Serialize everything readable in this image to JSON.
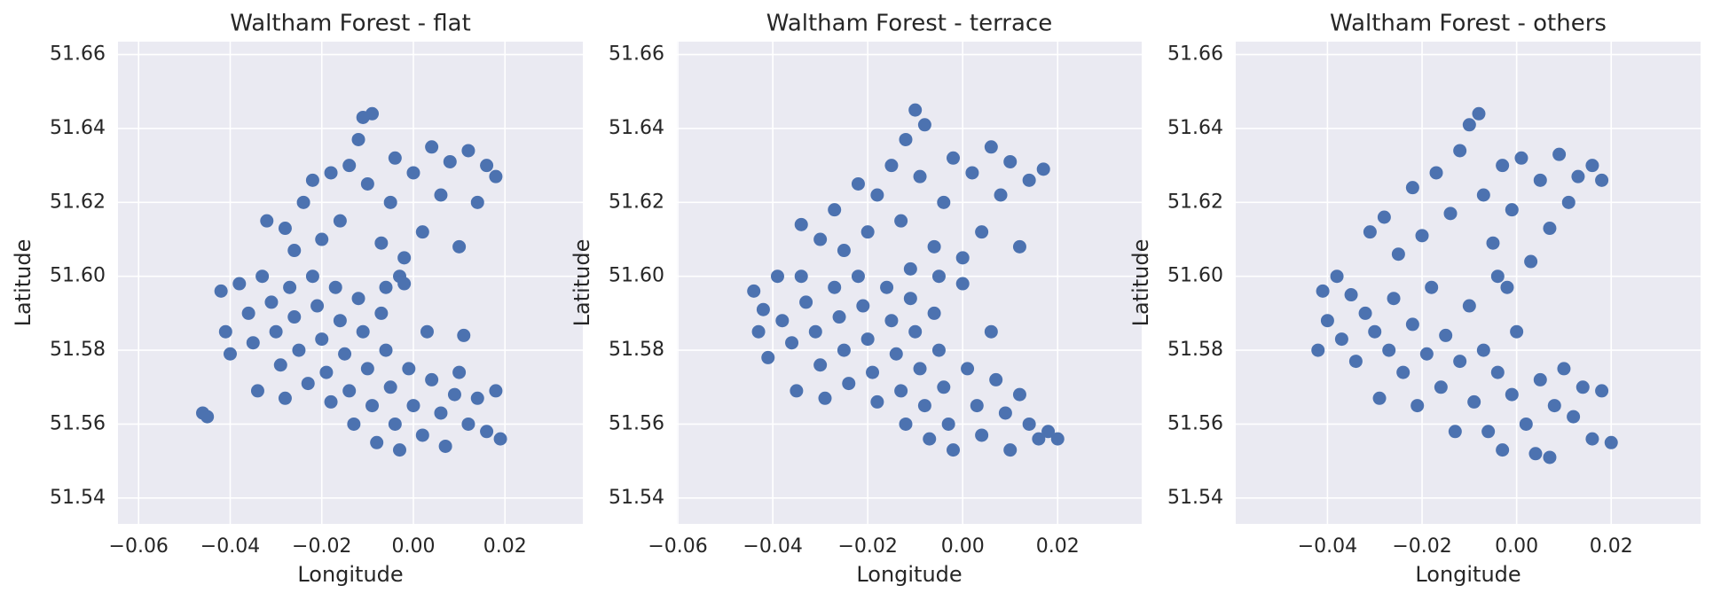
{
  "chart_data": [
    {
      "type": "scatter",
      "title": "Waltham Forest - flat",
      "xlabel": "Longitude",
      "ylabel": "Latitude",
      "color": "#4c72b0",
      "grid": true,
      "xlim": [
        -0.0645,
        0.037
      ],
      "ylim": [
        51.533,
        51.6635
      ],
      "xticks": [
        {
          "value": -0.06,
          "label": "−0.06"
        },
        {
          "value": -0.04,
          "label": "−0.04"
        },
        {
          "value": -0.02,
          "label": "−0.02"
        },
        {
          "value": 0.0,
          "label": "0.00"
        },
        {
          "value": 0.02,
          "label": "0.02"
        }
      ],
      "yticks": [
        {
          "value": 51.54,
          "label": "51.54"
        },
        {
          "value": 51.56,
          "label": "51.56"
        },
        {
          "value": 51.58,
          "label": "51.58"
        },
        {
          "value": 51.6,
          "label": "51.60"
        },
        {
          "value": 51.62,
          "label": "51.62"
        },
        {
          "value": 51.64,
          "label": "51.64"
        },
        {
          "value": 51.66,
          "label": "51.66"
        }
      ],
      "x": [
        -0.046,
        -0.045,
        -0.042,
        -0.041,
        -0.04,
        -0.038,
        -0.036,
        -0.035,
        -0.034,
        -0.033,
        -0.031,
        -0.03,
        -0.029,
        -0.028,
        -0.027,
        -0.026,
        -0.025,
        -0.023,
        -0.022,
        -0.021,
        -0.02,
        -0.019,
        -0.018,
        -0.017,
        -0.016,
        -0.015,
        -0.014,
        -0.013,
        -0.012,
        -0.011,
        -0.01,
        -0.009,
        -0.008,
        -0.007,
        -0.006,
        -0.005,
        -0.004,
        -0.003,
        -0.002,
        -0.001,
        0.0,
        0.002,
        0.003,
        0.004,
        0.006,
        0.007,
        0.009,
        0.01,
        0.011,
        0.012,
        0.014,
        0.016,
        0.018,
        0.019,
        -0.032,
        -0.028,
        -0.026,
        -0.024,
        -0.022,
        -0.02,
        -0.018,
        -0.016,
        -0.014,
        -0.012,
        -0.011,
        -0.009,
        -0.01,
        -0.007,
        -0.005,
        -0.004,
        -0.002,
        0.0,
        0.002,
        0.004,
        0.006,
        0.008,
        0.01,
        0.012,
        0.014,
        0.016,
        0.018,
        -0.003,
        -0.006
      ],
      "y": [
        51.563,
        51.562,
        51.596,
        51.585,
        51.579,
        51.598,
        51.59,
        51.582,
        51.569,
        51.6,
        51.593,
        51.585,
        51.576,
        51.567,
        51.597,
        51.589,
        51.58,
        51.571,
        51.6,
        51.592,
        51.583,
        51.574,
        51.566,
        51.597,
        51.588,
        51.579,
        51.569,
        51.56,
        51.594,
        51.585,
        51.575,
        51.565,
        51.555,
        51.59,
        51.58,
        51.57,
        51.56,
        51.553,
        51.598,
        51.575,
        51.565,
        51.557,
        51.585,
        51.572,
        51.563,
        51.554,
        51.568,
        51.574,
        51.584,
        51.56,
        51.567,
        51.558,
        51.569,
        51.556,
        51.615,
        51.613,
        51.607,
        51.62,
        51.626,
        51.61,
        51.628,
        51.615,
        51.63,
        51.637,
        51.643,
        51.644,
        51.625,
        51.609,
        51.62,
        51.632,
        51.605,
        51.628,
        51.612,
        51.635,
        51.622,
        51.631,
        51.608,
        51.634,
        51.62,
        51.63,
        51.627,
        51.6,
        51.597
      ]
    },
    {
      "type": "scatter",
      "title": "Waltham Forest - terrace",
      "xlabel": "Longitude",
      "ylabel": "Latitude",
      "color": "#4c72b0",
      "grid": true,
      "xlim": [
        -0.0602,
        0.0377
      ],
      "ylim": [
        51.533,
        51.6635
      ],
      "xticks": [
        {
          "value": -0.06,
          "label": "−0.06"
        },
        {
          "value": -0.04,
          "label": "−0.04"
        },
        {
          "value": -0.02,
          "label": "−0.02"
        },
        {
          "value": 0.0,
          "label": "0.00"
        },
        {
          "value": 0.02,
          "label": "0.02"
        }
      ],
      "yticks": [
        {
          "value": 51.54,
          "label": "51.54"
        },
        {
          "value": 51.56,
          "label": "51.56"
        },
        {
          "value": 51.58,
          "label": "51.58"
        },
        {
          "value": 51.6,
          "label": "51.60"
        },
        {
          "value": 51.62,
          "label": "51.62"
        },
        {
          "value": 51.64,
          "label": "51.64"
        },
        {
          "value": 51.66,
          "label": "51.66"
        }
      ],
      "x": [
        -0.044,
        -0.043,
        -0.042,
        -0.041,
        -0.039,
        -0.038,
        -0.036,
        -0.035,
        -0.034,
        -0.033,
        -0.031,
        -0.03,
        -0.029,
        -0.027,
        -0.026,
        -0.025,
        -0.024,
        -0.022,
        -0.021,
        -0.02,
        -0.019,
        -0.018,
        -0.016,
        -0.015,
        -0.014,
        -0.013,
        -0.012,
        -0.011,
        -0.01,
        -0.009,
        -0.008,
        -0.007,
        -0.006,
        -0.005,
        -0.004,
        -0.003,
        -0.002,
        0.0,
        0.001,
        0.003,
        0.004,
        0.006,
        0.007,
        0.009,
        0.01,
        0.012,
        0.014,
        0.016,
        0.018,
        0.02,
        -0.034,
        -0.03,
        -0.027,
        -0.025,
        -0.022,
        -0.02,
        -0.018,
        -0.015,
        -0.013,
        -0.012,
        -0.01,
        -0.008,
        -0.009,
        -0.006,
        -0.004,
        -0.002,
        0.0,
        0.002,
        0.004,
        0.006,
        0.008,
        0.01,
        0.012,
        0.014,
        0.017,
        -0.005,
        -0.011
      ],
      "y": [
        51.596,
        51.585,
        51.591,
        51.578,
        51.6,
        51.588,
        51.582,
        51.569,
        51.6,
        51.593,
        51.585,
        51.576,
        51.567,
        51.597,
        51.589,
        51.58,
        51.571,
        51.6,
        51.592,
        51.583,
        51.574,
        51.566,
        51.597,
        51.588,
        51.579,
        51.569,
        51.56,
        51.594,
        51.585,
        51.575,
        51.565,
        51.556,
        51.59,
        51.58,
        51.57,
        51.56,
        51.553,
        51.598,
        51.575,
        51.565,
        51.557,
        51.585,
        51.572,
        51.563,
        51.553,
        51.568,
        51.56,
        51.556,
        51.558,
        51.556,
        51.614,
        51.61,
        51.618,
        51.607,
        51.625,
        51.612,
        51.622,
        51.63,
        51.615,
        51.637,
        51.645,
        51.641,
        51.627,
        51.608,
        51.62,
        51.632,
        51.605,
        51.628,
        51.612,
        51.635,
        51.622,
        51.631,
        51.608,
        51.626,
        51.629,
        51.6,
        51.602
      ]
    },
    {
      "type": "scatter",
      "title": "Waltham Forest - others",
      "xlabel": "Longitude",
      "ylabel": "Latitude",
      "color": "#4c72b0",
      "grid": true,
      "xlim": [
        -0.0594,
        0.0389
      ],
      "ylim": [
        51.533,
        51.6635
      ],
      "xticks": [
        {
          "value": -0.04,
          "label": "−0.04"
        },
        {
          "value": -0.02,
          "label": "−0.02"
        },
        {
          "value": 0.0,
          "label": "0.00"
        },
        {
          "value": 0.02,
          "label": "0.02"
        }
      ],
      "yticks": [
        {
          "value": 51.54,
          "label": "51.54"
        },
        {
          "value": 51.56,
          "label": "51.56"
        },
        {
          "value": 51.58,
          "label": "51.58"
        },
        {
          "value": 51.6,
          "label": "51.60"
        },
        {
          "value": 51.62,
          "label": "51.62"
        },
        {
          "value": 51.64,
          "label": "51.64"
        },
        {
          "value": 51.66,
          "label": "51.66"
        }
      ],
      "x": [
        -0.042,
        -0.041,
        -0.04,
        -0.038,
        -0.037,
        -0.035,
        -0.034,
        -0.032,
        -0.03,
        -0.029,
        -0.027,
        -0.026,
        -0.024,
        -0.022,
        -0.021,
        -0.019,
        -0.018,
        -0.016,
        -0.015,
        -0.013,
        -0.012,
        -0.01,
        -0.009,
        -0.007,
        -0.006,
        -0.004,
        -0.003,
        -0.001,
        0.0,
        0.002,
        0.004,
        0.005,
        0.007,
        0.008,
        0.01,
        0.012,
        0.014,
        0.016,
        0.018,
        0.02,
        -0.031,
        -0.028,
        -0.025,
        -0.022,
        -0.02,
        -0.017,
        -0.014,
        -0.012,
        -0.01,
        -0.008,
        -0.007,
        -0.005,
        -0.003,
        -0.001,
        0.001,
        0.003,
        0.005,
        0.007,
        0.009,
        0.011,
        0.013,
        0.016,
        0.018,
        -0.002,
        -0.004
      ],
      "y": [
        51.58,
        51.596,
        51.588,
        51.6,
        51.583,
        51.595,
        51.577,
        51.59,
        51.585,
        51.567,
        51.58,
        51.594,
        51.574,
        51.587,
        51.565,
        51.579,
        51.597,
        51.57,
        51.584,
        51.558,
        51.577,
        51.592,
        51.566,
        51.58,
        51.558,
        51.574,
        51.553,
        51.568,
        51.585,
        51.56,
        51.552,
        51.572,
        51.551,
        51.565,
        51.575,
        51.562,
        51.57,
        51.556,
        51.569,
        51.555,
        51.612,
        51.616,
        51.606,
        51.624,
        51.611,
        51.628,
        51.617,
        51.634,
        51.641,
        51.644,
        51.622,
        51.609,
        51.63,
        51.618,
        51.632,
        51.604,
        51.626,
        51.613,
        51.633,
        51.62,
        51.627,
        51.63,
        51.626,
        51.597,
        51.6
      ]
    }
  ]
}
